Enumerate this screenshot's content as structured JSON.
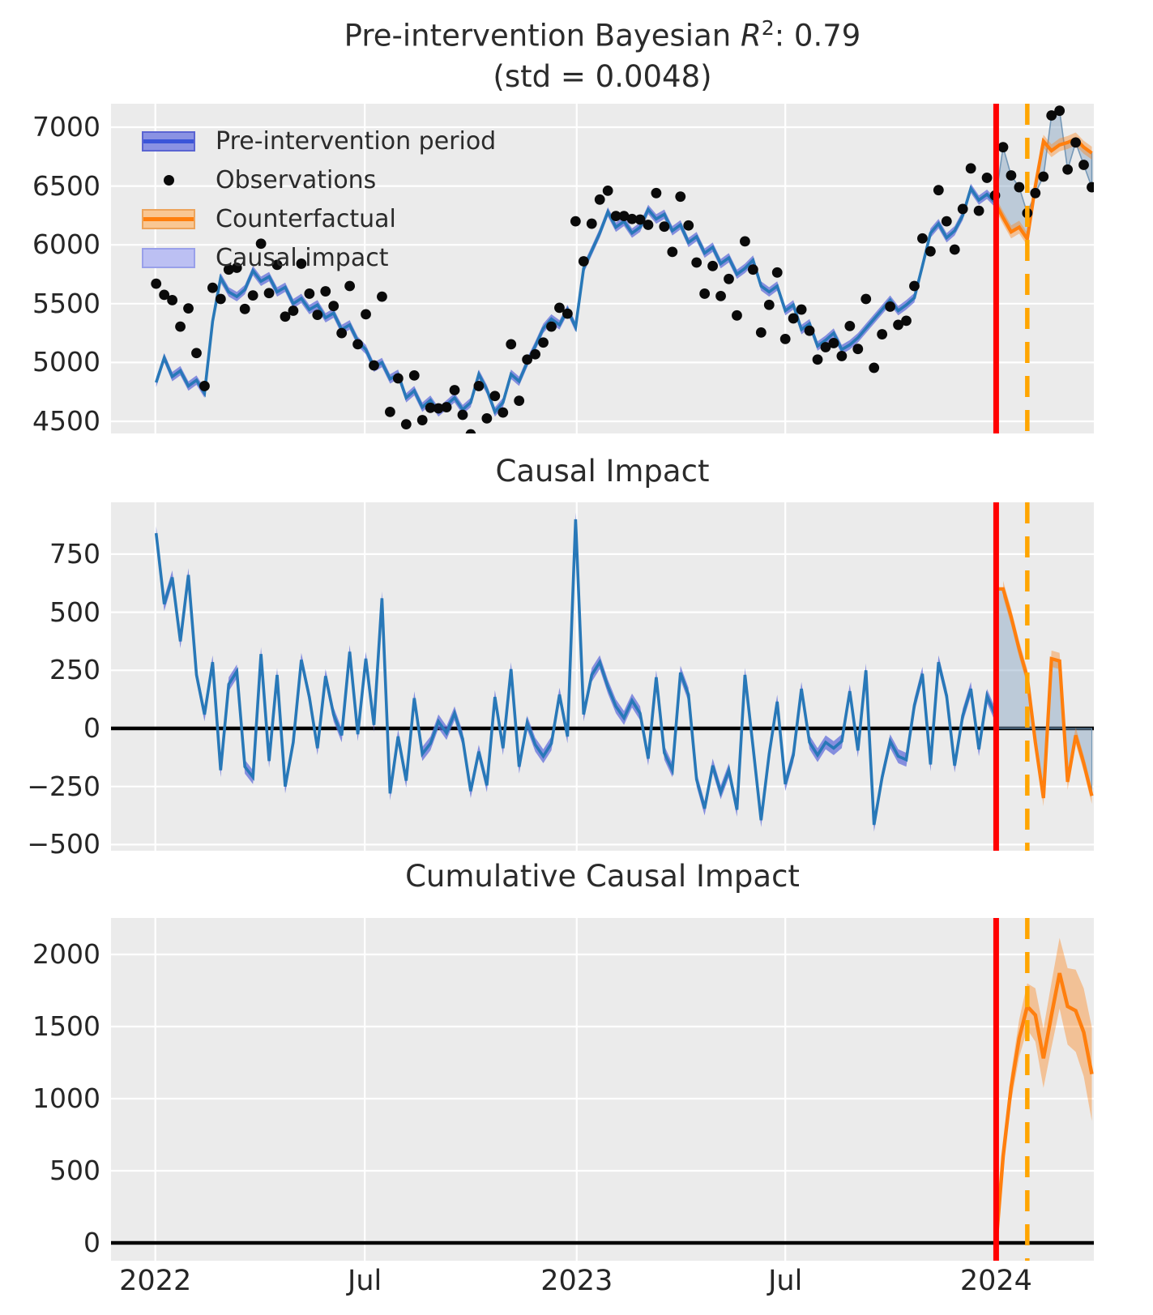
{
  "figure": {
    "top_title": {
      "prefix": "Pre-intervention Bayesian ",
      "r_symbol": "R",
      "exponent": "2",
      "suffix": ": 0.79",
      "line2": "(std = 0.0048)"
    },
    "panel2_title": "Causal Impact",
    "panel3_title": "Cumulative Causal Impact"
  },
  "legend": {
    "items": [
      {
        "label": "Pre-intervention period",
        "swatch": "blue-band"
      },
      {
        "label": "Observations",
        "swatch": "black-dot"
      },
      {
        "label": "Counterfactual",
        "swatch": "orange-band"
      },
      {
        "label": "Causal impact",
        "swatch": "lightblue-patch"
      }
    ]
  },
  "colors": {
    "panel_bg": "#ebebeb",
    "grid": "#ffffff",
    "text": "#262626",
    "blue_line": "#2878b8",
    "pre_band": "rgba(90,102,216,0.70)",
    "legend_pre_fill": "#8a92e3",
    "legend_pre_border": "#5a64d2",
    "legend_pre_line": "#3a55d9",
    "orange": "#ff7f0e",
    "orange_band": "rgba(255,127,14,0.38)",
    "legend_cf_fill": "#f9c793",
    "legend_cf_border": "#eda45c",
    "causal_fill": "rgba(125,158,190,0.42)",
    "causal_edge": "rgba(100,140,175,0.85)",
    "legend_causal_fill": "#bcc0f3",
    "legend_causal_border": "#99a0ea",
    "observation_dot": "#0a0a0a",
    "zero_line": "#000000",
    "intervention_line": "#ff0000",
    "prediction_line": "#ffa500"
  },
  "axes": {
    "x_ticks": [
      {
        "label": "2022",
        "week": -0.1
      },
      {
        "label": "Jul",
        "week": 25.86
      },
      {
        "label": "2023",
        "week": 52.14
      },
      {
        "label": "Jul",
        "week": 78.0
      },
      {
        "label": "2024",
        "week": 104.14
      }
    ],
    "panel1_yticks": [
      {
        "label": "7000",
        "v": 7000
      },
      {
        "label": "6500",
        "v": 6500
      },
      {
        "label": "6000",
        "v": 6000
      },
      {
        "label": "5500",
        "v": 5500
      },
      {
        "label": "5000",
        "v": 5000
      },
      {
        "label": "4500",
        "v": 4500
      }
    ],
    "panel2_yticks": [
      {
        "label": "750",
        "v": 750
      },
      {
        "label": "500",
        "v": 500
      },
      {
        "label": "250",
        "v": 250
      },
      {
        "label": "0",
        "v": 0
      },
      {
        "label": "−250",
        "v": -250
      },
      {
        "label": "−500",
        "v": -500
      }
    ],
    "panel3_yticks": [
      {
        "label": "2000",
        "v": 2000
      },
      {
        "label": "1500",
        "v": 1500
      },
      {
        "label": "1000",
        "v": 1000
      },
      {
        "label": "500",
        "v": 500
      },
      {
        "label": "0",
        "v": 0
      }
    ]
  },
  "events": {
    "intervention_week": 104.14,
    "prediction_start_week": 108.0
  },
  "chart_data": [
    {
      "type": "line",
      "title": "Pre-intervention Bayesian R^2: 0.79 (std = 0.0048)",
      "x_unit": "weeks from 2022-01",
      "ylim": [
        4397,
        7200
      ],
      "series": [
        {
          "name": "fitted_pre_mean",
          "start_week": 0,
          "band_halfwidth": 40,
          "values": [
            4830,
            5040,
            4880,
            4930,
            4800,
            4850,
            4740,
            5350,
            5720,
            5600,
            5560,
            5620,
            5780,
            5690,
            5730,
            5600,
            5640,
            5500,
            5545,
            5450,
            5490,
            5380,
            5420,
            5280,
            5320,
            5180,
            5110,
            4960,
            5000,
            4860,
            4900,
            4700,
            4760,
            4620,
            4680,
            4580,
            4640,
            4700,
            4600,
            4660,
            4900,
            4770,
            4580,
            4660,
            4900,
            4840,
            5000,
            5140,
            5290,
            5370,
            5320,
            5450,
            5300,
            5800,
            5950,
            6100,
            6280,
            6150,
            6200,
            6100,
            6150,
            6300,
            6220,
            6260,
            6120,
            6170,
            6020,
            6070,
            5930,
            5980,
            5840,
            5890,
            5750,
            5800,
            5870,
            5650,
            5600,
            5650,
            5440,
            5490,
            5280,
            5330,
            5140,
            5190,
            5250,
            5110,
            5150,
            5210,
            5290,
            5370,
            5450,
            5530,
            5440,
            5490,
            5550,
            5820,
            6100,
            6180,
            6060,
            6120,
            6250,
            6480,
            6380,
            6430,
            6360
          ]
        },
        {
          "name": "counterfactual_mean",
          "start_week": 104,
          "band_halfwidth": 55,
          "values": [
            6360,
            6230,
            6110,
            6150,
            6050,
            6500,
            6880,
            6800,
            6850,
            6870,
            6900,
            6830,
            6780
          ]
        },
        {
          "name": "observations",
          "start_week": 0,
          "values": [
            5670,
            5575,
            5530,
            5305,
            5460,
            5080,
            4800,
            5635,
            5540,
            5790,
            5805,
            5455,
            5570,
            6010,
            5590,
            5830,
            5390,
            5440,
            5840,
            5585,
            5405,
            5605,
            5480,
            5250,
            5650,
            5155,
            5410,
            4975,
            5560,
            4580,
            4865,
            4475,
            4890,
            4510,
            4615,
            4610,
            4620,
            4765,
            4555,
            4390,
            4800,
            4525,
            4715,
            4575,
            5155,
            4675,
            5025,
            5070,
            5170,
            5305,
            5465,
            5415,
            6200,
            5860,
            6180,
            6385,
            6460,
            6245,
            6245,
            6220,
            6215,
            6170,
            6440,
            6155,
            5940,
            6410,
            6165,
            5850,
            5585,
            5820,
            5565,
            5710,
            5400,
            6030,
            5790,
            5255,
            5490,
            5765,
            5200,
            5375,
            5450,
            5270,
            5025,
            5130,
            5165,
            5055,
            5310,
            5115,
            5540,
            4955,
            5240,
            5475,
            5320,
            5355,
            5650,
            6055,
            5945,
            6465,
            6200,
            5960,
            6305,
            6650,
            6290,
            6570,
            6420,
            6830,
            6590,
            6490,
            6270,
            6440,
            6580,
            7100,
            7140,
            6640,
            6870,
            6680,
            6490
          ]
        }
      ]
    },
    {
      "type": "line",
      "title": "Causal Impact",
      "ylim": [
        -526,
        973
      ],
      "series": [
        {
          "name": "pointwise_impact",
          "start_week": 0,
          "pre_band_halfwidth": 30,
          "post_band_halfwidth": 35,
          "values": [
            840,
            535,
            650,
            375,
            660,
            230,
            60,
            285,
            -180,
            190,
            245,
            -165,
            -210,
            320,
            -140,
            230,
            -250,
            -60,
            295,
            135,
            -85,
            225,
            60,
            -30,
            330,
            -25,
            300,
            15,
            560,
            -280,
            -35,
            -225,
            130,
            -110,
            -65,
            30,
            -20,
            65,
            -45,
            -270,
            -100,
            -245,
            135,
            -85,
            255,
            -165,
            25,
            -70,
            -120,
            -65,
            145,
            -35,
            900,
            60,
            230,
            285,
            180,
            95,
            45,
            120,
            65,
            -130,
            220,
            -105,
            -180,
            240,
            145,
            -220,
            -345,
            -160,
            -275,
            -180,
            -350,
            230,
            -80,
            -395,
            -110,
            115,
            -240,
            -115,
            170,
            -60,
            -115,
            -60,
            -85,
            -55,
            160,
            -95,
            250,
            -415,
            -210,
            -55,
            -120,
            -135,
            100,
            235,
            -155,
            285,
            140,
            -160,
            55,
            170,
            -90,
            140,
            60,
            600,
            480,
            340,
            220,
            -60,
            -300,
            300,
            290,
            -230,
            -30,
            -150,
            -290
          ]
        }
      ]
    },
    {
      "type": "line",
      "title": "Cumulative Causal Impact",
      "ylim": [
        -124,
        2253
      ],
      "series": [
        {
          "name": "cumulative_impact",
          "start_week": 105,
          "values": [
            600,
            1080,
            1420,
            1640,
            1580,
            1280,
            1580,
            1870,
            1640,
            1610,
            1460,
            1170
          ],
          "band_halfwidths": [
            70,
            100,
            130,
            160,
            185,
            205,
            225,
            245,
            265,
            285,
            305,
            325
          ]
        }
      ]
    }
  ]
}
